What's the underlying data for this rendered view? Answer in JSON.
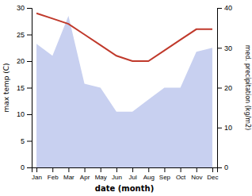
{
  "chart_data": {
    "type": "line",
    "categories": [
      "Jan",
      "Feb",
      "Mar",
      "Apr",
      "May",
      "Jun",
      "Jul",
      "Aug",
      "Sep",
      "Oct",
      "Nov",
      "Dec"
    ],
    "series": [
      {
        "type": "area",
        "color": "#c8d0f0",
        "axis": "y2",
        "values": [
          31,
          28,
          38,
          21,
          20,
          14,
          14,
          17,
          20,
          20,
          29,
          30
        ]
      },
      {
        "type": "line",
        "color": "#c0392b",
        "values": [
          29,
          28,
          27,
          25,
          23,
          21,
          20,
          20,
          22,
          24,
          26,
          26
        ]
      }
    ],
    "xlabel": "date (month)",
    "ylabel": "max temp (C)",
    "y2label": "med. precipitation (kg/m2)",
    "ylim": [
      0,
      30
    ],
    "yticks": [
      0,
      5,
      10,
      15,
      20,
      25,
      30
    ],
    "y2lim": [
      0,
      40
    ],
    "y2ticks": [
      0,
      10,
      20,
      30,
      40
    ]
  }
}
